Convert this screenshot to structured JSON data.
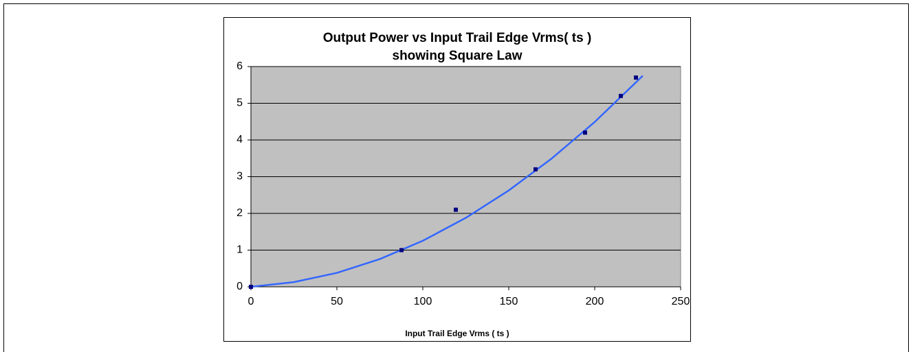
{
  "chart_data": {
    "type": "scatter",
    "title": [
      "Output Power vs Input Trail Edge Vrms( ts )",
      "showing Square Law"
    ],
    "x_label": "Input Trail Edge Vrms ( ts )",
    "xlim": [
      0,
      250
    ],
    "xticks": [
      0,
      50,
      100,
      150,
      200,
      250
    ],
    "ylim": [
      0,
      6
    ],
    "yticks": [
      0,
      1,
      2,
      3,
      4,
      5,
      6
    ],
    "grid": true,
    "plot_background": "#c0c0c0",
    "series": [
      {
        "color": "#000080",
        "x": [
          0,
          87.6,
          119.2,
          165.6,
          194.4,
          215.2,
          224
        ],
        "values": [
          0,
          1,
          2.1,
          3.2,
          4.2,
          5.2,
          5.7
        ]
      }
    ],
    "trendline": {
      "color": "#3366ff",
      "x": [
        0,
        25,
        50,
        75,
        100,
        125,
        150,
        175,
        200,
        228
      ],
      "values": [
        0,
        0.128,
        0.38,
        0.756,
        1.255,
        1.878,
        2.625,
        3.496,
        4.49,
        5.75
      ]
    }
  }
}
